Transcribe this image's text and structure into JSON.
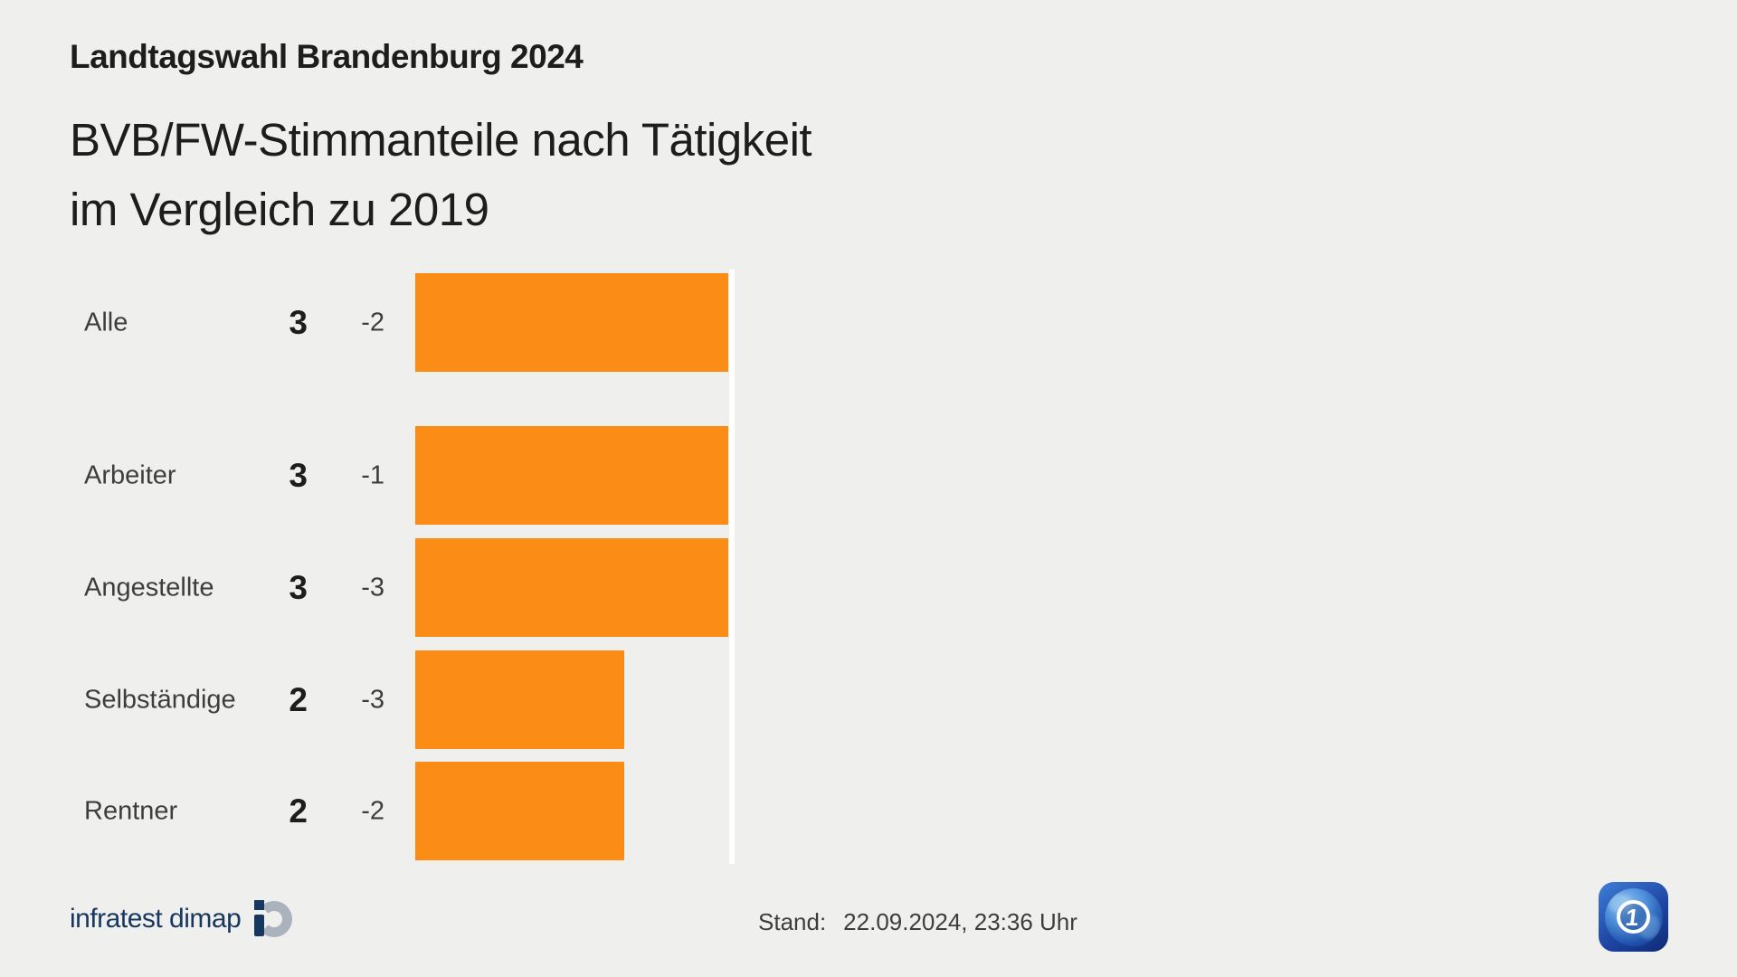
{
  "theme": {
    "background": "#efefed",
    "bar_color": "#fb8d16",
    "text_dark": "#1d1d1b",
    "text_gray": "#3d3d3b",
    "brand_navy": "#17375f",
    "brand_gray": "#a9b2bd",
    "ard_blue_dark": "#0e2a72",
    "ard_blue_light": "#3f7ed8",
    "reference_line_color": "#ffffff"
  },
  "header": {
    "kicker": "Landtagswahl Brandenburg 2024",
    "title_line1": "BVB/FW-Stimmanteile nach Tätigkeit",
    "title_line2": "im Vergleich zu 2019"
  },
  "chart_data": {
    "type": "bar",
    "orientation": "horizontal",
    "title": "BVB/FW-Stimmanteile nach Tätigkeit im Vergleich zu 2019",
    "categories": [
      "Alle",
      "Arbeiter",
      "Angestellte",
      "Selbständige",
      "Rentner"
    ],
    "values": [
      3,
      3,
      3,
      2,
      2
    ],
    "changes": [
      -2,
      -1,
      -3,
      -3,
      -2
    ],
    "bar_color": "#fb8d16",
    "xlim": [
      0,
      3
    ],
    "reference_line_at": 3,
    "grid": "off",
    "legend": "none",
    "axis_labels": "none"
  },
  "footer": {
    "source": "infratest dimap",
    "source_logo_icon": "infratest-dimap-mark",
    "stand_label": "Stand:",
    "stand_value": "22.09.2024, 23:36 Uhr",
    "ard_logo_icon": "ard-globe",
    "ard_one": "1"
  }
}
